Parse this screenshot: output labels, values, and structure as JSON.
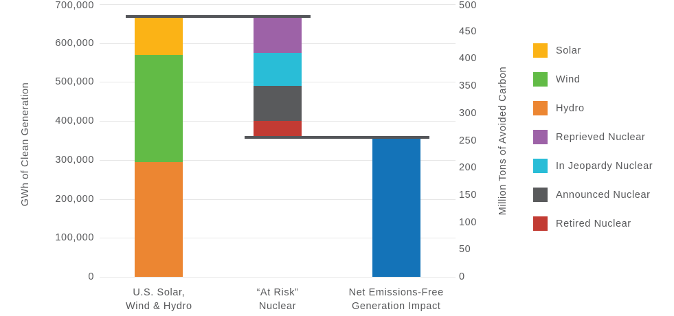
{
  "chart_data": {
    "type": "bar",
    "subtype": "stacked-waterfall",
    "title": "",
    "left_axis": {
      "label": "GWh of Clean Generation",
      "min": 0,
      "max": 700000,
      "tick_step": 100000,
      "ticks": [
        "0",
        "100,000",
        "200,000",
        "300,000",
        "400,000",
        "500,000",
        "600,000",
        "700,000"
      ]
    },
    "right_axis": {
      "label": "Million Tons of Avoided Carbon",
      "min": 0,
      "max": 500,
      "tick_step": 50,
      "ticks": [
        "0",
        "50",
        "100",
        "150",
        "200",
        "250",
        "300",
        "350",
        "400",
        "450",
        "500"
      ]
    },
    "categories": [
      [
        "U.S. Solar,",
        "Wind & Hydro"
      ],
      [
        "“At Risk”",
        "Nuclear"
      ],
      [
        "Net Emissions-Free",
        "Generation Impact"
      ]
    ],
    "bars": [
      {
        "category_index": 0,
        "segments": [
          {
            "name": "Hydro",
            "from": 0,
            "to": 295000,
            "value": 295000,
            "color": "#EC8632"
          },
          {
            "name": "Wind",
            "from": 295000,
            "to": 570000,
            "value": 275000,
            "color": "#62BB46"
          },
          {
            "name": "Solar",
            "from": 570000,
            "to": 665000,
            "value": 95000,
            "color": "#FBB316"
          }
        ]
      },
      {
        "category_index": 1,
        "segments": [
          {
            "name": "Retired Nuclear",
            "from": 355000,
            "to": 400000,
            "value": 45000,
            "color": "#C23B33"
          },
          {
            "name": "Announced Nuclear",
            "from": 400000,
            "to": 490000,
            "value": 90000,
            "color": "#595A5C"
          },
          {
            "name": "In Jeopardy Nuclear",
            "from": 490000,
            "to": 575000,
            "value": 85000,
            "color": "#29BDD7"
          },
          {
            "name": "Reprieved Nuclear",
            "from": 575000,
            "to": 665000,
            "value": 90000,
            "color": "#9D62A7"
          }
        ]
      },
      {
        "category_index": 2,
        "segments": [
          {
            "name": "Net Emissions-Free Generation Impact",
            "from": 0,
            "to": 355000,
            "value": 355000,
            "color": "#1473B8"
          }
        ]
      }
    ],
    "connector_lines": [
      {
        "value": 665000,
        "from_bar": 0,
        "to_bar": 1
      },
      {
        "value": 355000,
        "from_bar": 1,
        "to_bar": 2
      }
    ],
    "legend": [
      {
        "label": "Solar",
        "color": "#FBB316"
      },
      {
        "label": "Wind",
        "color": "#62BB46"
      },
      {
        "label": "Hydro",
        "color": "#EC8632"
      },
      {
        "label": "Reprieved Nuclear",
        "color": "#9D62A7"
      },
      {
        "label": "In Jeopardy Nuclear",
        "color": "#29BDD7"
      },
      {
        "label": "Announced Nuclear",
        "color": "#595A5C"
      },
      {
        "label": "Retired Nuclear",
        "color": "#C23B33"
      }
    ],
    "colors": {
      "gridline": "#E7E7E7",
      "connector": "#54565A",
      "text": "#58595B",
      "background": "#FFFFFF"
    },
    "layout_hints": {
      "grid": "horizontal only",
      "legend_position": "right",
      "dual_axis": true
    }
  }
}
